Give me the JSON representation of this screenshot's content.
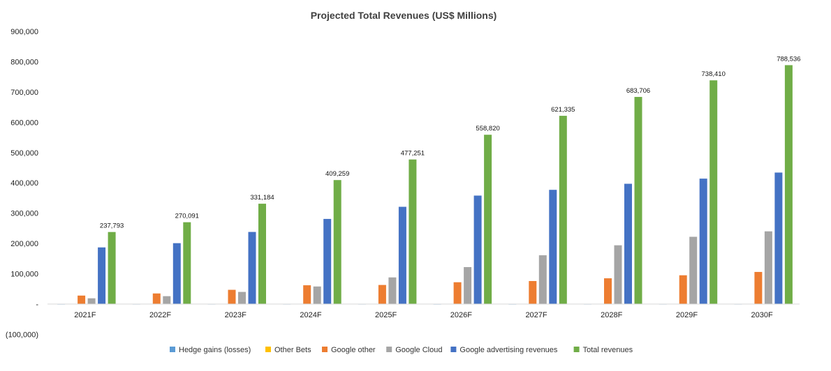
{
  "chart_data": {
    "type": "bar",
    "title": "Projected Total Revenues (US$ Millions)",
    "xlabel": "",
    "ylabel": "",
    "categories": [
      "2021F",
      "2022F",
      "2023F",
      "2024F",
      "2025F",
      "2026F",
      "2027F",
      "2028F",
      "2029F",
      "2030F"
    ],
    "ylim": [
      -100000,
      900000
    ],
    "yticks": [
      900000,
      800000,
      700000,
      600000,
      500000,
      400000,
      300000,
      200000,
      100000,
      0,
      -100000
    ],
    "ytick_labels": [
      "900,000",
      "800,000",
      "700,000",
      "600,000",
      "500,000",
      "400,000",
      "300,000",
      "200,000",
      "100,000",
      "-",
      "(100,000)"
    ],
    "grid": false,
    "legend_position": "bottom",
    "series": [
      {
        "name": "Hedge gains (losses)",
        "color": "#5B9BD5",
        "values": [
          -1500,
          0,
          0,
          0,
          0,
          -1500,
          -1500,
          0,
          0,
          0
        ]
      },
      {
        "name": "Other Bets",
        "color": "#FFC000",
        "values": [
          650,
          700,
          750,
          800,
          850,
          900,
          950,
          1000,
          1050,
          1100
        ]
      },
      {
        "name": "Google other",
        "color": "#ED7D31",
        "values": [
          28000,
          35000,
          47000,
          62000,
          63000,
          72000,
          76000,
          85000,
          95000,
          106000
        ]
      },
      {
        "name": "Google Cloud",
        "color": "#A5A5A5",
        "values": [
          19000,
          26000,
          40000,
          58000,
          88000,
          122000,
          161000,
          194000,
          222000,
          240000
        ]
      },
      {
        "name": "Google advertising revenues",
        "color": "#4472C4",
        "values": [
          187000,
          201000,
          238000,
          281000,
          321000,
          358000,
          377000,
          397000,
          414000,
          434000
        ]
      },
      {
        "name": "Total revenues",
        "color": "#70AD47",
        "values": [
          237793,
          270091,
          331184,
          409259,
          477251,
          558820,
          621335,
          683706,
          738410,
          788536
        ]
      }
    ],
    "data_labels": [
      "237,793",
      "270,091",
      "331,184",
      "409,259",
      "477,251",
      "558,820",
      "621,335",
      "683,706",
      "738,410",
      "788,536"
    ]
  }
}
